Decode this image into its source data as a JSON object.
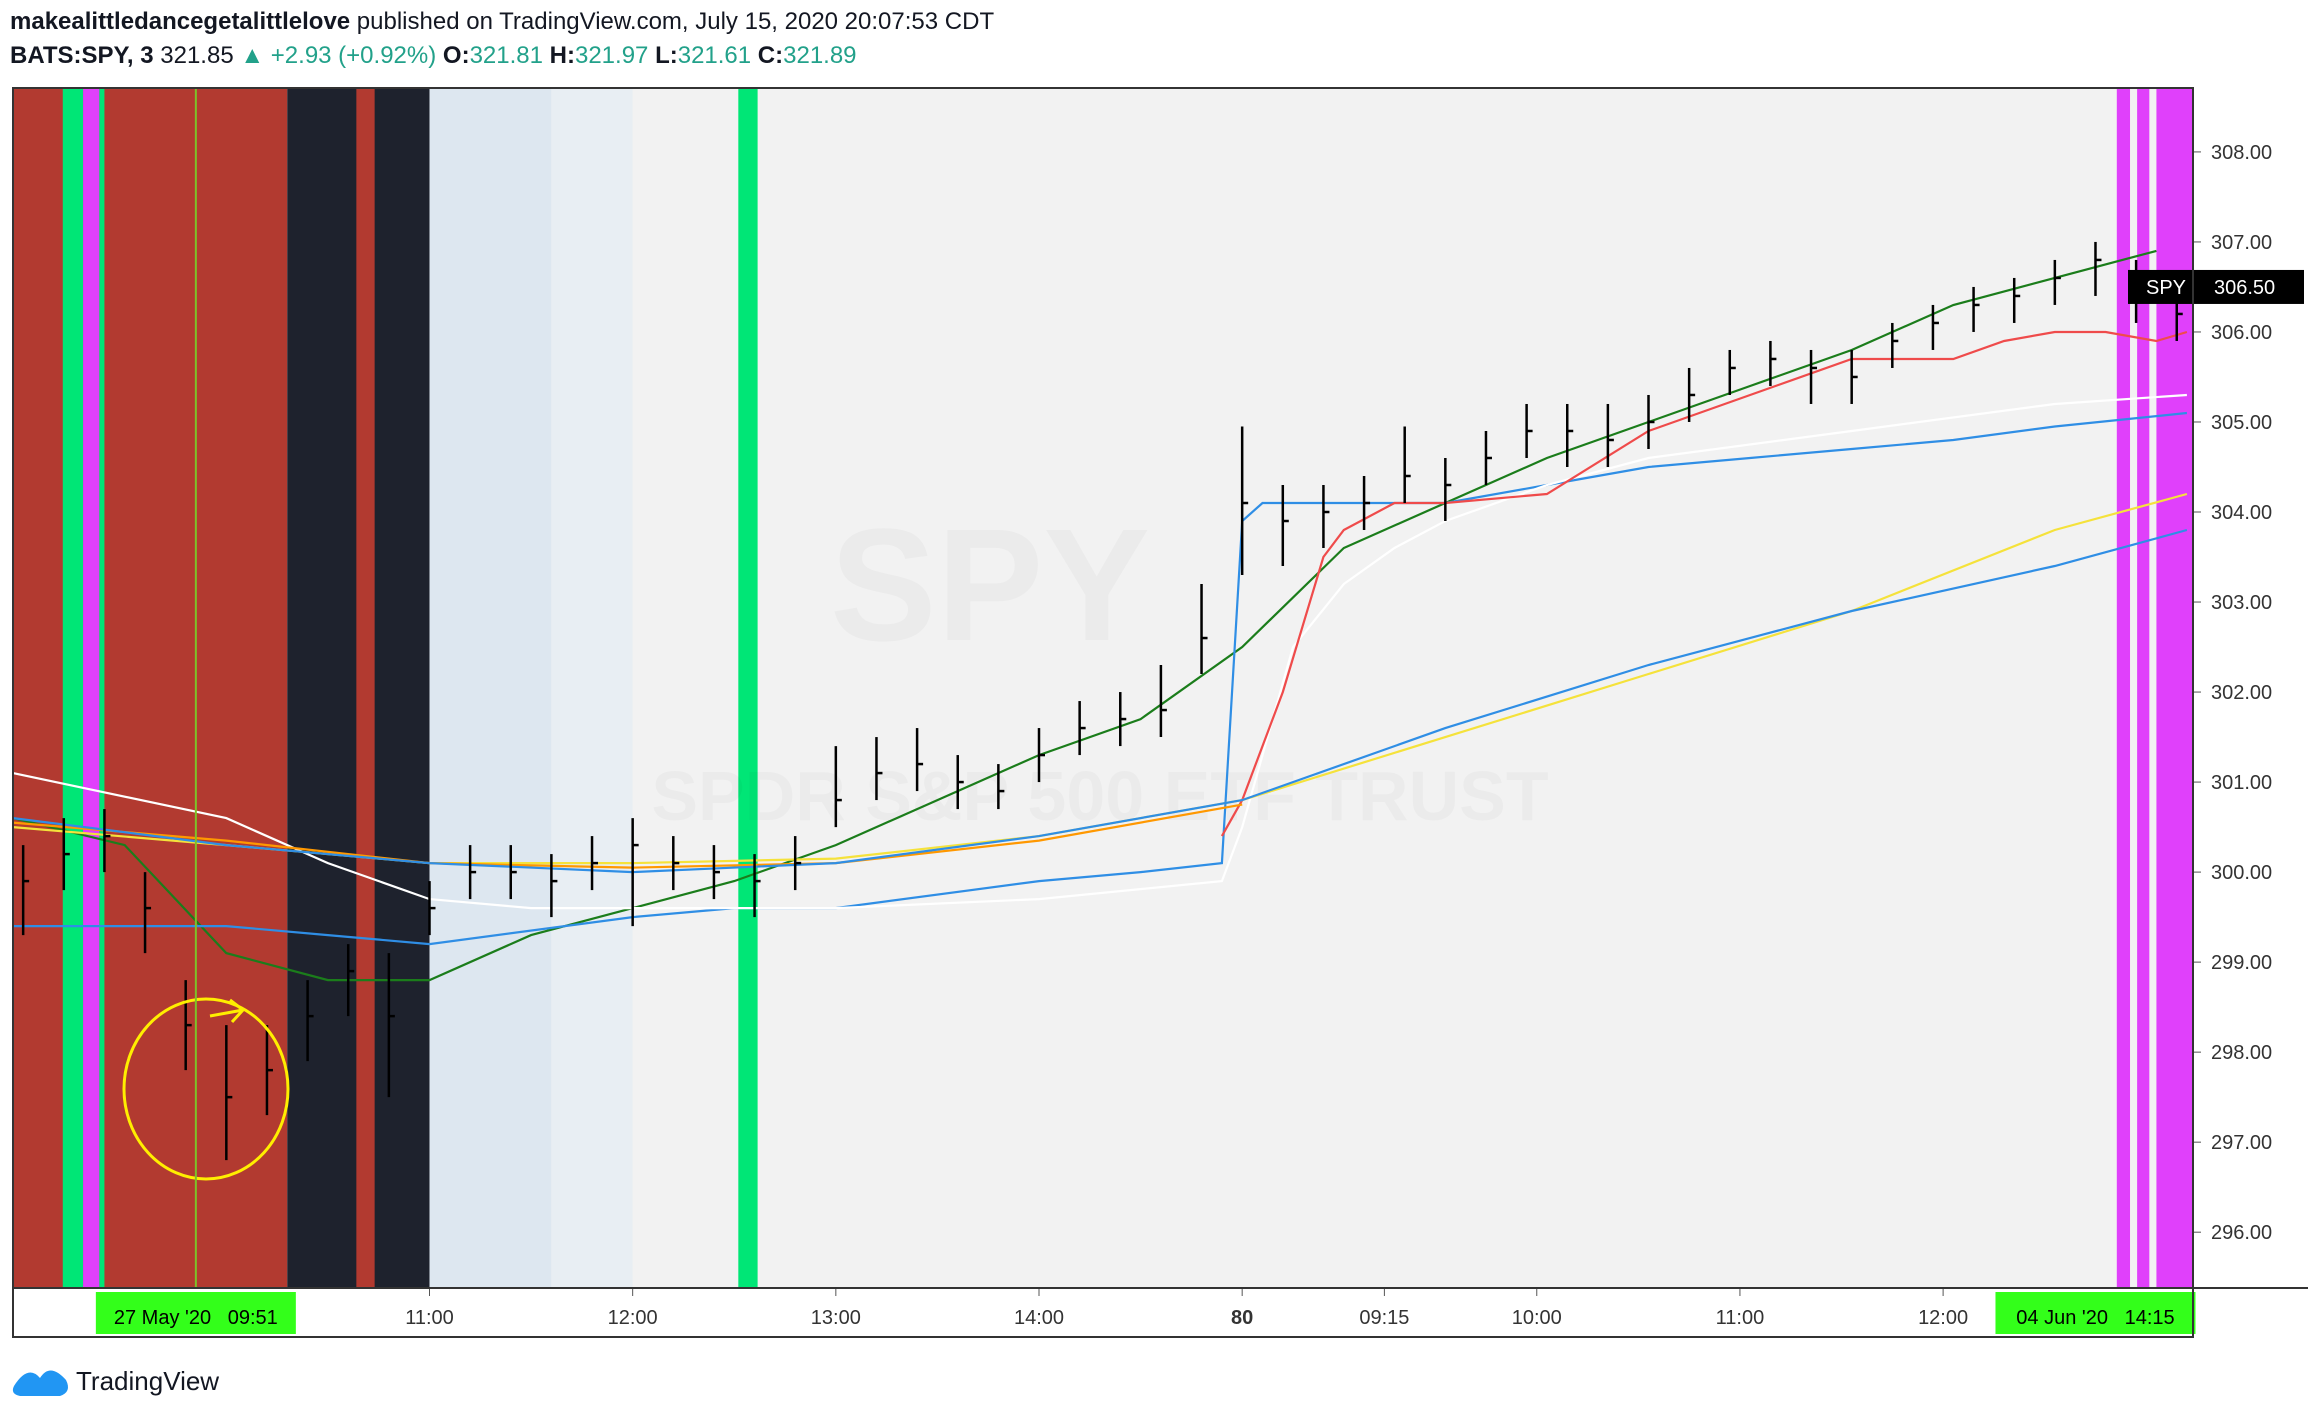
{
  "header": {
    "author": "makealittledancegetalittlelove",
    "published": " published on TradingView.com, July 15, 2020 20:07:53 CDT",
    "symbol": "BATS:SPY, 3",
    "last": "321.85",
    "arrow": "▲",
    "change": "+2.93 (+0.92%)",
    "open_label": "O:",
    "open": "321.81",
    "high_label": "H:",
    "high": "321.97",
    "low_label": "L:",
    "low": "321.61",
    "close_label": "C:",
    "close": "321.89"
  },
  "footer": {
    "brand": "TradingView"
  },
  "chart_data": {
    "type": "ohlc",
    "watermark": {
      "symbol": "SPY",
      "description": "SPDR S&P 500 ETF TRUST"
    },
    "xlim": [
      -41,
      173.6
    ],
    "ylim": [
      295.38,
      308.71
    ],
    "xticks": [
      {
        "value": 0,
        "label": "11:00"
      },
      {
        "value": 20,
        "label": "12:00"
      },
      {
        "value": 40,
        "label": "13:00"
      },
      {
        "value": 60,
        "label": "14:00"
      },
      80,
      {
        "value": 94,
        "label": "09:15"
      },
      {
        "value": 109,
        "label": "10:00"
      },
      {
        "value": 129,
        "label": "11:00"
      },
      {
        "value": 149,
        "label": "12:00"
      }
    ],
    "yticks": [
      {
        "value": 296,
        "label": "296.00"
      },
      {
        "value": 297,
        "label": "297.00"
      },
      {
        "value": 298,
        "label": "298.00"
      },
      {
        "value": 299,
        "label": "299.00"
      },
      {
        "value": 300,
        "label": "300.00"
      },
      {
        "value": 301,
        "label": "301.00"
      },
      {
        "value": 302,
        "label": "302.00"
      },
      {
        "value": 303,
        "label": "303.00"
      },
      {
        "value": 304,
        "label": "304.00"
      },
      {
        "value": 305,
        "label": "305.00"
      },
      {
        "value": 306,
        "label": "306.00"
      },
      {
        "value": 307,
        "label": "307.00"
      },
      {
        "value": 308,
        "label": "308.00"
      }
    ],
    "crosshair": [
      {
        "value": -23,
        "label": "27 May '20   09:51"
      },
      {
        "value": 164,
        "label": "04 Jun '20   14:15"
      }
    ],
    "price_marker": {
      "name": "SPY",
      "value": 306.5,
      "label": "306.50"
    },
    "bands": [
      {
        "from": -41,
        "to": -14,
        "color": "#b23a30"
      },
      {
        "from": -36.1,
        "to": -34.1,
        "color": "#00e676"
      },
      {
        "from": -34.1,
        "to": -32.5,
        "color": "#e040fb"
      },
      {
        "from": -32.5,
        "to": -32,
        "color": "#00e676"
      },
      {
        "from": -14,
        "to": 0,
        "color": "#1e222d"
      },
      {
        "from": -7.2,
        "to": -5.4,
        "color": "#b23a30"
      },
      {
        "from": 0,
        "to": 12,
        "color": "#dde7f0"
      },
      {
        "from": 12,
        "to": 20,
        "color": "#e8eef3"
      },
      {
        "from": 30.4,
        "to": 32.3,
        "color": "#00e676"
      },
      {
        "from": 166.1,
        "to": 167.4,
        "color": "#e040fb"
      },
      {
        "from": 168.1,
        "to": 169.3,
        "color": "#e040fb"
      },
      {
        "from": 170,
        "to": 173.6,
        "color": "#e040fb"
      }
    ],
    "bars": {
      "color": "#000000",
      "x": [
        -40,
        -36,
        -32,
        -28,
        -24,
        -20,
        -16,
        -12,
        -8,
        -4,
        0,
        4,
        8,
        12,
        16,
        20,
        24,
        28,
        32,
        36,
        40,
        44,
        48,
        52,
        56,
        60,
        64,
        68,
        72,
        76,
        80,
        84,
        88,
        92,
        96,
        100,
        104,
        108,
        112,
        116,
        120,
        124,
        128,
        132,
        136,
        140,
        144,
        148,
        152,
        156,
        160,
        164,
        168,
        172
      ],
      "high": [
        300.3,
        300.6,
        300.7,
        300.0,
        298.8,
        298.3,
        298.3,
        298.8,
        299.2,
        299.1,
        299.9,
        300.3,
        300.3,
        300.2,
        300.4,
        300.6,
        300.4,
        300.3,
        300.2,
        300.4,
        301.4,
        301.5,
        301.6,
        301.3,
        301.2,
        301.6,
        301.9,
        302.0,
        302.3,
        303.2,
        304.95,
        304.3,
        304.3,
        304.4,
        304.95,
        304.6,
        304.9,
        305.2,
        305.2,
        305.2,
        305.3,
        305.6,
        305.8,
        305.9,
        305.8,
        305.8,
        306.1,
        306.3,
        306.5,
        306.6,
        306.8,
        307.0,
        306.8,
        306.5
      ],
      "low": [
        299.3,
        299.8,
        300.0,
        299.1,
        297.8,
        296.8,
        297.3,
        297.9,
        298.4,
        297.5,
        299.3,
        299.7,
        299.7,
        299.5,
        299.8,
        299.4,
        299.8,
        299.7,
        299.5,
        299.8,
        300.5,
        300.8,
        300.9,
        300.7,
        300.7,
        301.0,
        301.3,
        301.4,
        301.5,
        302.2,
        303.3,
        303.4,
        303.6,
        303.8,
        304.1,
        303.9,
        304.3,
        304.6,
        304.5,
        304.5,
        304.7,
        305.0,
        305.3,
        305.4,
        305.2,
        305.2,
        305.6,
        305.8,
        306.0,
        306.1,
        306.3,
        306.4,
        306.1,
        305.9
      ],
      "close": [
        299.9,
        300.2,
        300.4,
        299.6,
        298.3,
        297.5,
        297.8,
        298.4,
        298.9,
        298.4,
        299.6,
        300.0,
        300.0,
        299.9,
        300.1,
        300.3,
        300.1,
        300.0,
        299.9,
        300.1,
        300.8,
        301.1,
        301.2,
        301.0,
        300.9,
        301.3,
        301.6,
        301.7,
        301.8,
        302.6,
        304.1,
        303.9,
        304.0,
        304.1,
        304.4,
        304.3,
        304.6,
        304.9,
        304.9,
        304.8,
        305.0,
        305.3,
        305.6,
        305.7,
        305.6,
        305.5,
        305.9,
        306.1,
        306.3,
        306.4,
        306.6,
        306.8,
        306.5,
        306.2
      ]
    },
    "lines": [
      {
        "color": "#1b7d1b",
        "x": [
          -41,
          -30,
          -20,
          -10,
          0,
          10,
          20,
          30,
          40,
          50,
          60,
          70,
          80,
          90,
          100,
          110,
          120,
          130,
          140,
          150,
          160,
          170
        ],
        "values": [
          300.6,
          300.3,
          299.1,
          298.8,
          298.8,
          299.3,
          299.6,
          299.9,
          300.3,
          300.8,
          301.3,
          301.7,
          302.5,
          303.6,
          304.1,
          304.6,
          305.0,
          305.4,
          305.8,
          306.3,
          306.6,
          306.9
        ]
      },
      {
        "color": "#2f8ee5",
        "x": [
          -41,
          -20,
          -10,
          0,
          20,
          30,
          40,
          60,
          70,
          78,
          80,
          82,
          90,
          100,
          110,
          120,
          130,
          140,
          150,
          160,
          173
        ],
        "values": [
          299.4,
          299.4,
          299.3,
          299.2,
          299.5,
          299.6,
          299.6,
          299.9,
          300.0,
          300.1,
          303.9,
          304.1,
          304.1,
          304.1,
          304.3,
          304.5,
          304.6,
          304.7,
          304.8,
          304.95,
          305.1
        ]
      },
      {
        "color": "#ffffff",
        "x": [
          -41,
          -20,
          -10,
          0,
          10,
          20,
          40,
          60,
          78,
          80,
          85,
          90,
          95,
          100,
          110,
          120,
          140,
          160,
          173
        ],
        "values": [
          301.1,
          300.6,
          300.1,
          299.7,
          299.6,
          299.6,
          299.6,
          299.7,
          299.9,
          300.5,
          302.5,
          303.2,
          303.6,
          303.9,
          304.3,
          304.6,
          304.9,
          305.2,
          305.3
        ]
      },
      {
        "color": "#ef4b4b",
        "x": [
          78,
          80,
          84,
          88,
          90,
          95,
          100,
          110,
          120,
          130,
          140,
          150,
          155,
          160,
          165,
          170,
          173
        ],
        "values": [
          300.4,
          300.8,
          302.0,
          303.5,
          303.8,
          304.1,
          304.1,
          304.2,
          304.9,
          305.3,
          305.7,
          305.7,
          305.9,
          306.0,
          306.0,
          305.9,
          306.0
        ]
      },
      {
        "color": "#f5e23b",
        "x": [
          -41,
          -20,
          0,
          20,
          40,
          60,
          80,
          100,
          120,
          140,
          160,
          173
        ],
        "values": [
          300.5,
          300.3,
          300.1,
          300.1,
          300.15,
          300.4,
          300.8,
          301.5,
          302.2,
          302.9,
          303.8,
          304.2
        ]
      },
      {
        "color": "#ff9800",
        "x": [
          -41,
          -20,
          0,
          20,
          40,
          60,
          80
        ],
        "values": [
          300.55,
          300.35,
          300.1,
          300.05,
          300.1,
          300.35,
          300.75
        ]
      },
      {
        "color": "#2f8ee5",
        "x": [
          -41,
          -20,
          0,
          20,
          40,
          60,
          80,
          100,
          120,
          140,
          160,
          173
        ],
        "values": [
          300.6,
          300.3,
          300.1,
          300.0,
          300.1,
          300.4,
          300.8,
          301.6,
          302.3,
          302.9,
          303.4,
          303.8
        ]
      }
    ]
  }
}
